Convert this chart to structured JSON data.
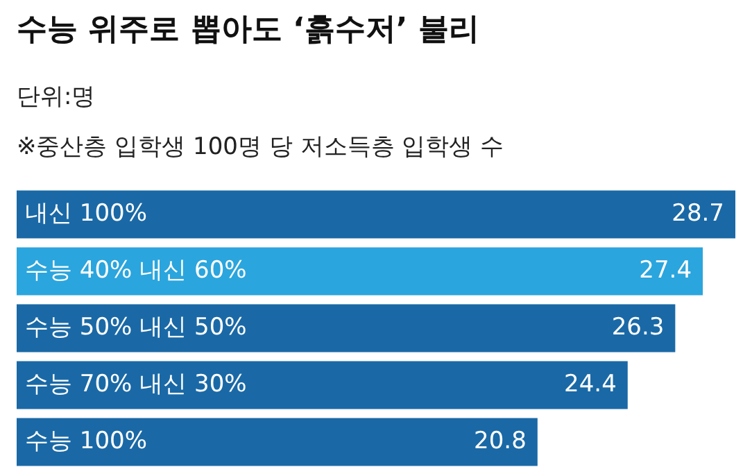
{
  "chart_data": {
    "type": "bar",
    "orientation": "horizontal",
    "title": "수능 위주로 뽑아도 ‘흙수저’ 불리",
    "subtitle": "단위:명",
    "annotations": [
      "※중산층 입학생 100명 당 저소득층 입학생 수"
    ],
    "categories": [
      "내신 100%",
      "수능 40% 내신 60%",
      "수능 50% 내신 50%",
      "수능 70% 내신 30%",
      "수능 100%"
    ],
    "values": [
      28.7,
      27.4,
      26.3,
      24.4,
      20.8
    ],
    "colors": [
      "#1a69a6",
      "#2ba5dd",
      "#1a69a6",
      "#1a69a6",
      "#1a69a6"
    ],
    "data_labels": true
  }
}
